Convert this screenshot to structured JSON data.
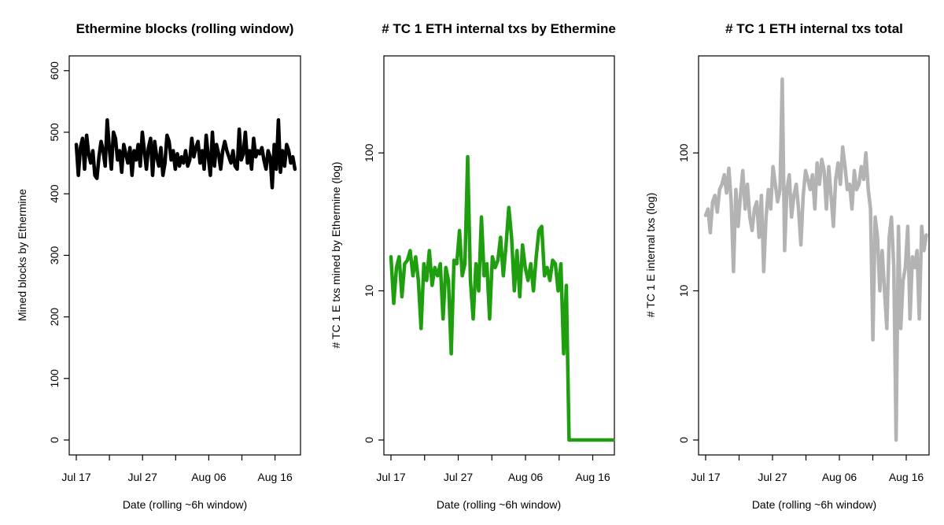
{
  "chart_data": [
    {
      "type": "line",
      "title": "Ethermine blocks (rolling window)",
      "xlabel": "Date (rolling ~6h window)",
      "ylabel": "Mined blocks by Ethermine",
      "x_ticks": [
        "Jul 17",
        "Jul 27",
        "Aug 06",
        "Aug 16"
      ],
      "y_ticks": [
        "0",
        "100",
        "200",
        "300",
        "400",
        "500",
        "600"
      ],
      "y_scale": "linear",
      "grid": false,
      "color": "#000000",
      "series": [
        {
          "x_range": [
            "Jul 17",
            "Aug 19"
          ],
          "values": [
            480,
            430,
            475,
            490,
            440,
            495,
            465,
            450,
            470,
            430,
            425,
            460,
            485,
            470,
            445,
            520,
            475,
            440,
            500,
            490,
            455,
            470,
            435,
            480,
            465,
            450,
            475,
            430,
            470,
            455,
            480,
            445,
            500,
            470,
            440,
            475,
            490,
            430,
            485,
            460,
            445,
            475,
            430,
            450,
            495,
            485,
            455,
            470,
            440,
            465,
            445,
            460,
            450,
            470,
            445,
            455,
            490,
            460,
            475,
            485,
            450,
            470,
            440,
            495,
            460,
            430,
            500,
            445,
            480,
            465,
            440,
            470,
            485,
            470,
            460,
            450,
            470,
            445,
            440,
            505,
            455,
            465,
            500,
            450,
            470,
            440,
            490,
            460,
            470,
            465,
            475,
            455,
            440,
            470,
            460,
            410,
            480,
            440,
            520,
            435,
            470,
            445,
            480,
            470,
            450,
            460,
            440
          ]
        }
      ]
    },
    {
      "type": "line",
      "title": "# TC 1 ETH internal txs by Ethermine",
      "xlabel": "Date (rolling ~6h window)",
      "ylabel": "# TC 1 E txs mined by Ethermine (log)",
      "x_ticks": [
        "Jul 17",
        "Jul 27",
        "Aug 06",
        "Aug 16"
      ],
      "y_ticks": [
        "0",
        "10",
        "100"
      ],
      "y_scale": "log1p",
      "grid": false,
      "color": "#1f9e0f",
      "series": [
        {
          "x_range": [
            "Jul 17",
            "Aug 19"
          ],
          "values": [
            18,
            8,
            15,
            18,
            9,
            16,
            17,
            20,
            13,
            18,
            12,
            5,
            16,
            12,
            20,
            11,
            15,
            13,
            16,
            6,
            15,
            12,
            3,
            17,
            16,
            28,
            13,
            16,
            94,
            12,
            6,
            16,
            10,
            35,
            13,
            16,
            6,
            18,
            15,
            17,
            25,
            13,
            22,
            41,
            25,
            10,
            20,
            9,
            22,
            15,
            12,
            16,
            10,
            18,
            28,
            30,
            13,
            15,
            12,
            17,
            16,
            10,
            16,
            3,
            11,
            0,
            0,
            0,
            0,
            0,
            0,
            0,
            0,
            0,
            0,
            0,
            0,
            0,
            0,
            0,
            0,
            0
          ]
        }
      ]
    },
    {
      "type": "line",
      "title": "# TC 1 ETH internal txs total",
      "xlabel": "Date (rolling ~6h window)",
      "ylabel": "# TC 1 E internal txs (log)",
      "x_ticks": [
        "Jul 17",
        "Jul 27",
        "Aug 06",
        "Aug 16"
      ],
      "y_ticks": [
        "0",
        "10",
        "100"
      ],
      "y_scale": "log1p",
      "grid": false,
      "color": "#b3b3b3",
      "series": [
        {
          "x_range": [
            "Jul 17",
            "Aug 19"
          ],
          "values": [
            36,
            40,
            27,
            45,
            50,
            38,
            55,
            60,
            70,
            52,
            78,
            45,
            14,
            55,
            30,
            50,
            75,
            40,
            60,
            35,
            28,
            40,
            45,
            25,
            50,
            14,
            35,
            55,
            40,
            80,
            60,
            45,
            55,
            330,
            20,
            55,
            70,
            35,
            50,
            60,
            40,
            22,
            50,
            75,
            65,
            55,
            70,
            40,
            85,
            60,
            90,
            75,
            40,
            80,
            50,
            30,
            65,
            85,
            60,
            110,
            80,
            55,
            60,
            40,
            75,
            55,
            60,
            80,
            65,
            100,
            55,
            40,
            4,
            35,
            25,
            10,
            20,
            10,
            5,
            25,
            35,
            15,
            0,
            30,
            5,
            12,
            15,
            30,
            6,
            18,
            15,
            20,
            6,
            30,
            20,
            26
          ]
        }
      ]
    }
  ]
}
